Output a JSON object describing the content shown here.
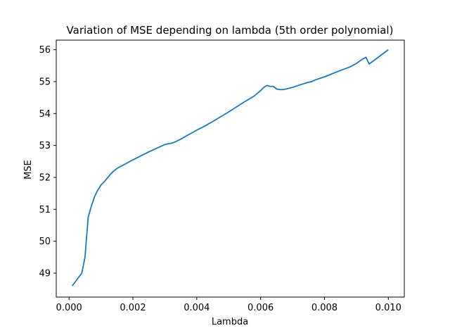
{
  "chart_data": {
    "type": "line",
    "title": "Variation of MSE depending on lambda (5th order polynomial)",
    "xlabel": "Lambda",
    "ylabel": "MSE",
    "xlim": [
      -0.0004,
      0.0105
    ],
    "ylim": [
      48.25,
      56.3
    ],
    "grid": false,
    "x_ticks": [
      0.0,
      0.002,
      0.004,
      0.006,
      0.008,
      0.01
    ],
    "x_tick_labels": [
      "0.000",
      "0.002",
      "0.004",
      "0.006",
      "0.008",
      "0.010"
    ],
    "y_ticks": [
      49,
      50,
      51,
      52,
      53,
      54,
      55,
      56
    ],
    "y_tick_labels": [
      "49",
      "50",
      "51",
      "52",
      "53",
      "54",
      "55",
      "56"
    ],
    "series": [
      {
        "color": "#1f77b4",
        "x": [
          0.0001,
          0.0004,
          0.0005,
          0.0006,
          0.0007,
          0.0008,
          0.0009,
          0.001,
          0.0011,
          0.0012,
          0.0013,
          0.0014,
          0.0015,
          0.002,
          0.0025,
          0.003,
          0.0031,
          0.0032,
          0.0033,
          0.0035,
          0.004,
          0.0042,
          0.0045,
          0.005,
          0.0055,
          0.0058,
          0.006,
          0.0061,
          0.0062,
          0.0063,
          0.0064,
          0.0065,
          0.0066,
          0.0067,
          0.0068,
          0.007,
          0.0073,
          0.0075,
          0.0076,
          0.0077,
          0.008,
          0.0085,
          0.0088,
          0.009,
          0.0092,
          0.0093,
          0.0094,
          0.0096,
          0.0098,
          0.01
        ],
        "y": [
          48.6,
          49.0,
          49.5,
          50.75,
          51.1,
          51.4,
          51.6,
          51.76,
          51.86,
          51.98,
          52.1,
          52.2,
          52.28,
          52.55,
          52.8,
          53.03,
          53.05,
          53.07,
          53.1,
          53.2,
          53.48,
          53.58,
          53.75,
          54.05,
          54.37,
          54.55,
          54.72,
          54.82,
          54.88,
          54.85,
          54.85,
          54.77,
          54.75,
          54.75,
          54.77,
          54.82,
          54.92,
          54.98,
          55.0,
          55.05,
          55.15,
          55.35,
          55.46,
          55.57,
          55.71,
          55.76,
          55.55,
          55.7,
          55.85,
          56.0
        ]
      }
    ]
  }
}
